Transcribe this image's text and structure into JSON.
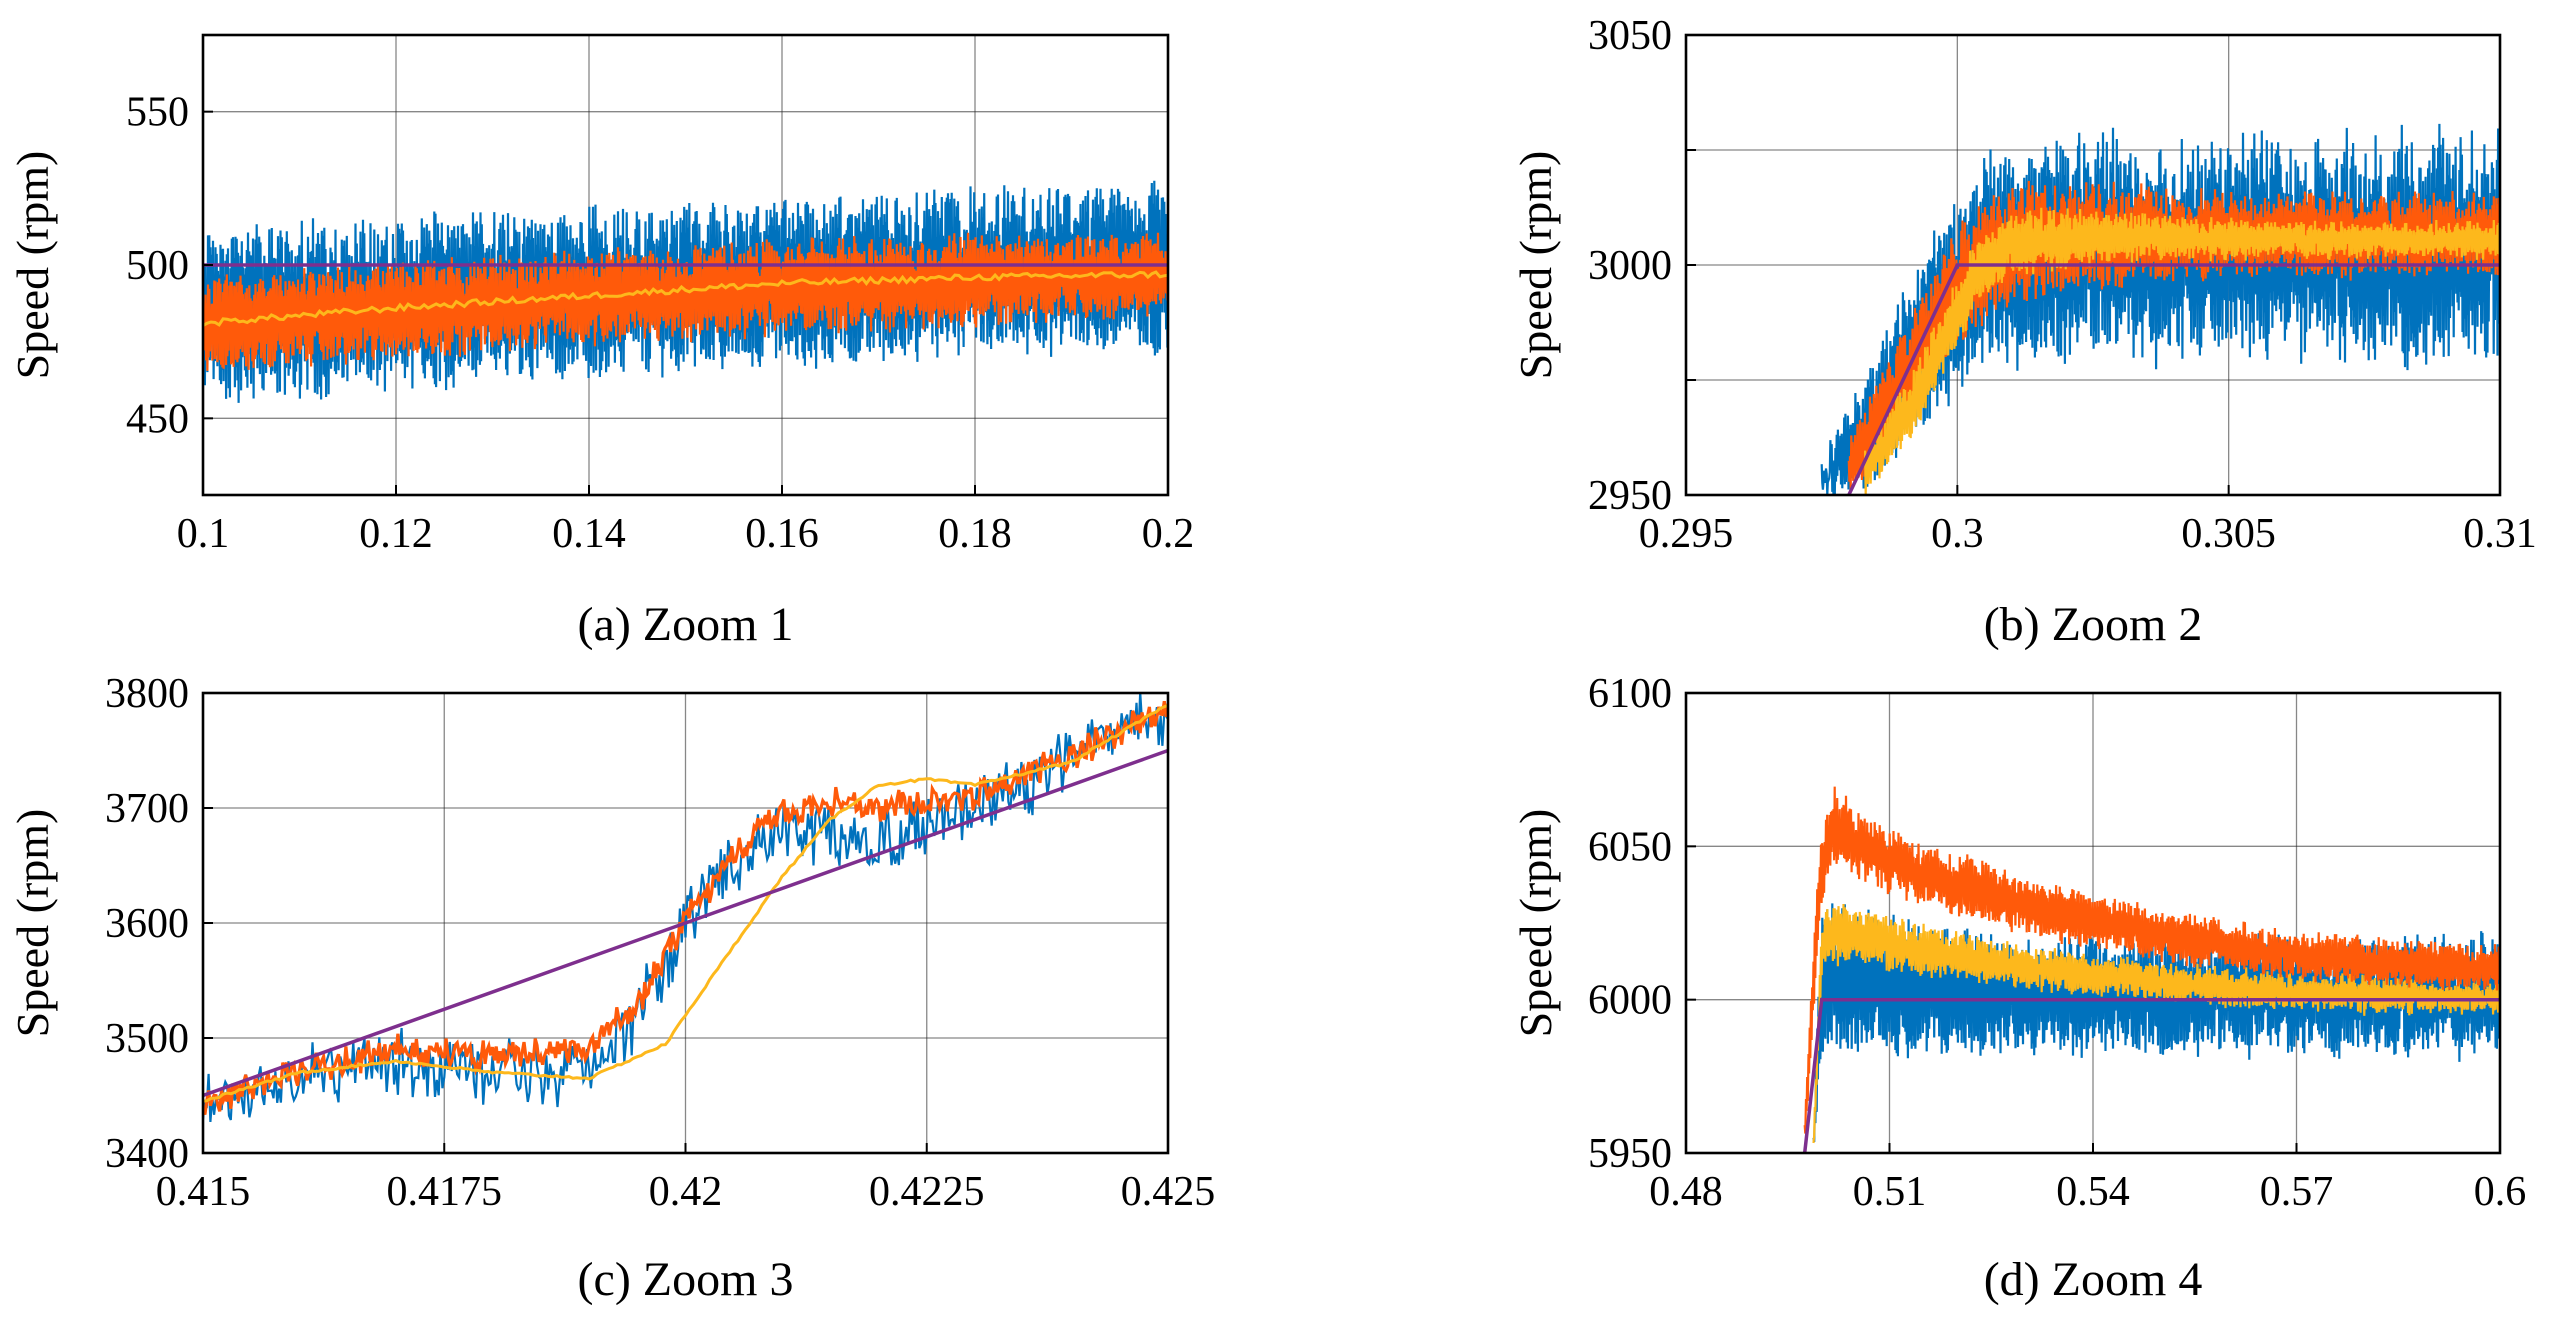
{
  "colors": {
    "series_blue": "#0072BD",
    "series_orange": "#FF5A0A",
    "series_yellow": "#FDB81C",
    "series_reference": "#7E2F8E"
  },
  "chart_data": [
    {
      "id": "zoom1",
      "type": "line",
      "caption": "(a) Zoom 1",
      "ylabel": "Speed (rpm)",
      "xlabel": "",
      "xlim": [
        0.1,
        0.2
      ],
      "ylim": [
        425,
        575
      ],
      "xticks": [
        0.1,
        0.12,
        0.14,
        0.16,
        0.18,
        0.2
      ],
      "xtick_labels": [
        "0.1",
        "0.12",
        "0.14",
        "0.16",
        "0.18",
        "0.2"
      ],
      "yticks": [
        450,
        500,
        550
      ],
      "ytick_labels": [
        "450",
        "500",
        "550"
      ],
      "grid": true,
      "series": [
        {
          "color": "blue",
          "kind": "noisy-band",
          "x": [
            0.1,
            0.12,
            0.14,
            0.16,
            0.18,
            0.2
          ],
          "low": [
            455,
            460,
            465,
            468,
            470,
            472
          ],
          "high": [
            512,
            515,
            518,
            521,
            524,
            526
          ],
          "jitter": 6
        },
        {
          "color": "orange",
          "kind": "noisy-band",
          "x": [
            0.1,
            0.12,
            0.14,
            0.16,
            0.18,
            0.2
          ],
          "low": [
            465,
            470,
            475,
            478,
            481,
            484
          ],
          "high": [
            496,
            500,
            504,
            507,
            509,
            510
          ],
          "jitter": 4
        },
        {
          "color": "yellow",
          "kind": "line",
          "x": [
            0.1,
            0.12,
            0.14,
            0.16,
            0.18,
            0.2
          ],
          "values": [
            481,
            486,
            490,
            494,
            496,
            497
          ]
        },
        {
          "color": "reference",
          "kind": "line",
          "x": [
            0.1,
            0.2
          ],
          "values": [
            500,
            500
          ]
        }
      ]
    },
    {
      "id": "zoom2",
      "type": "line",
      "caption": "(b) Zoom 2",
      "ylabel": "Speed (rpm)",
      "xlabel": "",
      "xlim": [
        0.295,
        0.31
      ],
      "ylim": [
        2950,
        3050
      ],
      "xticks": [
        0.295,
        0.3,
        0.305,
        0.31
      ],
      "xtick_labels": [
        "0.295",
        "0.3",
        "0.305",
        "0.31"
      ],
      "yticks": [
        2950,
        2975,
        3000,
        3025,
        3050
      ],
      "ytick_labels": [
        "2950",
        "",
        "3000",
        "",
        "3050"
      ],
      "grid": true,
      "series": [
        {
          "color": "blue",
          "kind": "noisy-band",
          "x": [
            0.2975,
            0.2985,
            0.2995,
            0.3005,
            0.302,
            0.304,
            0.306,
            0.308,
            0.31
          ],
          "low": [
            2950,
            2955,
            2968,
            2978,
            2980,
            2980,
            2981,
            2980,
            2981
          ],
          "high": [
            2955,
            2980,
            3005,
            3022,
            3028,
            3026,
            3026,
            3028,
            3027
          ],
          "jitter": 7
        },
        {
          "color": "orange",
          "kind": "noisy-band",
          "x": [
            0.298,
            0.299,
            0.3,
            0.301,
            0.303,
            0.306,
            0.308,
            0.31
          ],
          "low": [
            2950,
            2965,
            2982,
            2992,
            2996,
            2998,
            2998,
            2998
          ],
          "high": [
            2962,
            2985,
            3008,
            3018,
            3017,
            3015,
            3015,
            3015
          ],
          "jitter": 3
        },
        {
          "color": "yellow",
          "kind": "noisy-band",
          "x": [
            0.2983,
            0.2993,
            0.3003,
            0.301,
            0.303,
            0.306,
            0.308,
            0.31
          ],
          "low": [
            2950,
            2965,
            2990,
            2998,
            3001,
            3002,
            3002,
            3002
          ],
          "high": [
            2960,
            2980,
            3004,
            3012,
            3011,
            3009,
            3009,
            3009
          ],
          "jitter": 2
        },
        {
          "color": "reference",
          "kind": "line",
          "x": [
            0.298,
            0.3,
            0.31
          ],
          "values": [
            2950,
            3000,
            3000
          ]
        }
      ]
    },
    {
      "id": "zoom3",
      "type": "line",
      "caption": "(c) Zoom 3",
      "ylabel": "Speed (rpm)",
      "xlabel": "",
      "xlim": [
        0.415,
        0.425
      ],
      "ylim": [
        3400,
        3800
      ],
      "xticks": [
        0.415,
        0.4175,
        0.42,
        0.4225,
        0.425
      ],
      "xtick_labels": [
        "0.415",
        "0.4175",
        "0.42",
        "0.4225",
        "0.425"
      ],
      "yticks": [
        3400,
        3500,
        3600,
        3700,
        3800
      ],
      "ytick_labels": [
        "3400",
        "3500",
        "3600",
        "3700",
        "3800"
      ],
      "grid": true,
      "series": [
        {
          "color": "blue",
          "kind": "noisy-line",
          "x": [
            0.415,
            0.416,
            0.417,
            0.418,
            0.419,
            0.4195,
            0.42,
            0.4205,
            0.421,
            0.422,
            0.423,
            0.424,
            0.425
          ],
          "values": [
            3440,
            3465,
            3480,
            3470,
            3470,
            3520,
            3600,
            3650,
            3680,
            3670,
            3700,
            3740,
            3785
          ],
          "jitter": 30
        },
        {
          "color": "orange",
          "kind": "noisy-line",
          "x": [
            0.415,
            0.416,
            0.417,
            0.418,
            0.419,
            0.4195,
            0.42,
            0.4205,
            0.421,
            0.4215,
            0.422,
            0.423,
            0.424,
            0.425
          ],
          "values": [
            3445,
            3470,
            3490,
            3485,
            3490,
            3530,
            3600,
            3660,
            3695,
            3705,
            3700,
            3710,
            3745,
            3790
          ],
          "jitter": 14
        },
        {
          "color": "yellow",
          "kind": "line",
          "x": [
            0.415,
            0.416,
            0.417,
            0.418,
            0.419,
            0.4198,
            0.42,
            0.4205,
            0.421,
            0.4215,
            0.422,
            0.4225,
            0.423,
            0.424,
            0.425
          ],
          "values": [
            3445,
            3470,
            3480,
            3470,
            3465,
            3495,
            3520,
            3580,
            3640,
            3690,
            3720,
            3725,
            3720,
            3740,
            3790
          ]
        },
        {
          "color": "reference",
          "kind": "line",
          "x": [
            0.415,
            0.425
          ],
          "values": [
            3450,
            3750
          ]
        }
      ]
    },
    {
      "id": "zoom4",
      "type": "line",
      "caption": "(d) Zoom 4",
      "ylabel": "Speed (rpm)",
      "xlabel": "",
      "xlim": [
        0.48,
        0.6
      ],
      "ylim": [
        5950,
        6100
      ],
      "xticks": [
        0.48,
        0.51,
        0.54,
        0.57,
        0.6
      ],
      "xtick_labels": [
        "0.48",
        "0.51",
        "0.54",
        "0.57",
        "0.6"
      ],
      "yticks": [
        5950,
        6000,
        6050,
        6100
      ],
      "ytick_labels": [
        "5950",
        "6000",
        "6050",
        "6100"
      ],
      "grid": true,
      "series": [
        {
          "color": "blue",
          "kind": "noisy-band",
          "x": [
            0.4988,
            0.5,
            0.501,
            0.505,
            0.51,
            0.52,
            0.53,
            0.54,
            0.55,
            0.56,
            0.57,
            0.58,
            0.59,
            0.6
          ],
          "low": [
            5950,
            5982,
            5983,
            5983,
            5983,
            5983,
            5983,
            5983,
            5983,
            5983,
            5983,
            5983,
            5983,
            5983
          ],
          "high": [
            5955,
            6030,
            6035,
            6030,
            6025,
            6022,
            6020,
            6020,
            6020,
            6020,
            6020,
            6020,
            6020,
            6020
          ],
          "jitter": 7
        },
        {
          "color": "yellow",
          "kind": "noisy-band",
          "x": [
            0.4988,
            0.5,
            0.501,
            0.505,
            0.51,
            0.52,
            0.53,
            0.54,
            0.55,
            0.56,
            0.57,
            0.58,
            0.59,
            0.6
          ],
          "low": [
            5950,
            6005,
            6012,
            6012,
            6010,
            6007,
            6004,
            6002,
            6000,
            5998,
            5997,
            5996,
            5996,
            5996
          ],
          "high": [
            5955,
            6025,
            6032,
            6030,
            6026,
            6021,
            6017,
            6014,
            6012,
            6010,
            6008,
            6007,
            6006,
            6005
          ],
          "jitter": 3
        },
        {
          "color": "orange",
          "kind": "noisy-band",
          "x": [
            0.4975,
            0.4995,
            0.5015,
            0.505,
            0.51,
            0.52,
            0.53,
            0.54,
            0.55,
            0.56,
            0.57,
            0.58,
            0.59,
            0.6
          ],
          "low": [
            5950,
            6020,
            6045,
            6040,
            6035,
            6028,
            6022,
            6017,
            6013,
            6010,
            6007,
            6005,
            6004,
            6004
          ],
          "high": [
            5960,
            6045,
            6070,
            6062,
            6055,
            6047,
            6040,
            6034,
            6029,
            6025,
            6022,
            6020,
            6018,
            6018
          ],
          "jitter": 3
        },
        {
          "color": "reference",
          "kind": "line",
          "x": [
            0.4975,
            0.5,
            0.6
          ],
          "values": [
            5950,
            6000,
            6000
          ]
        }
      ]
    }
  ]
}
